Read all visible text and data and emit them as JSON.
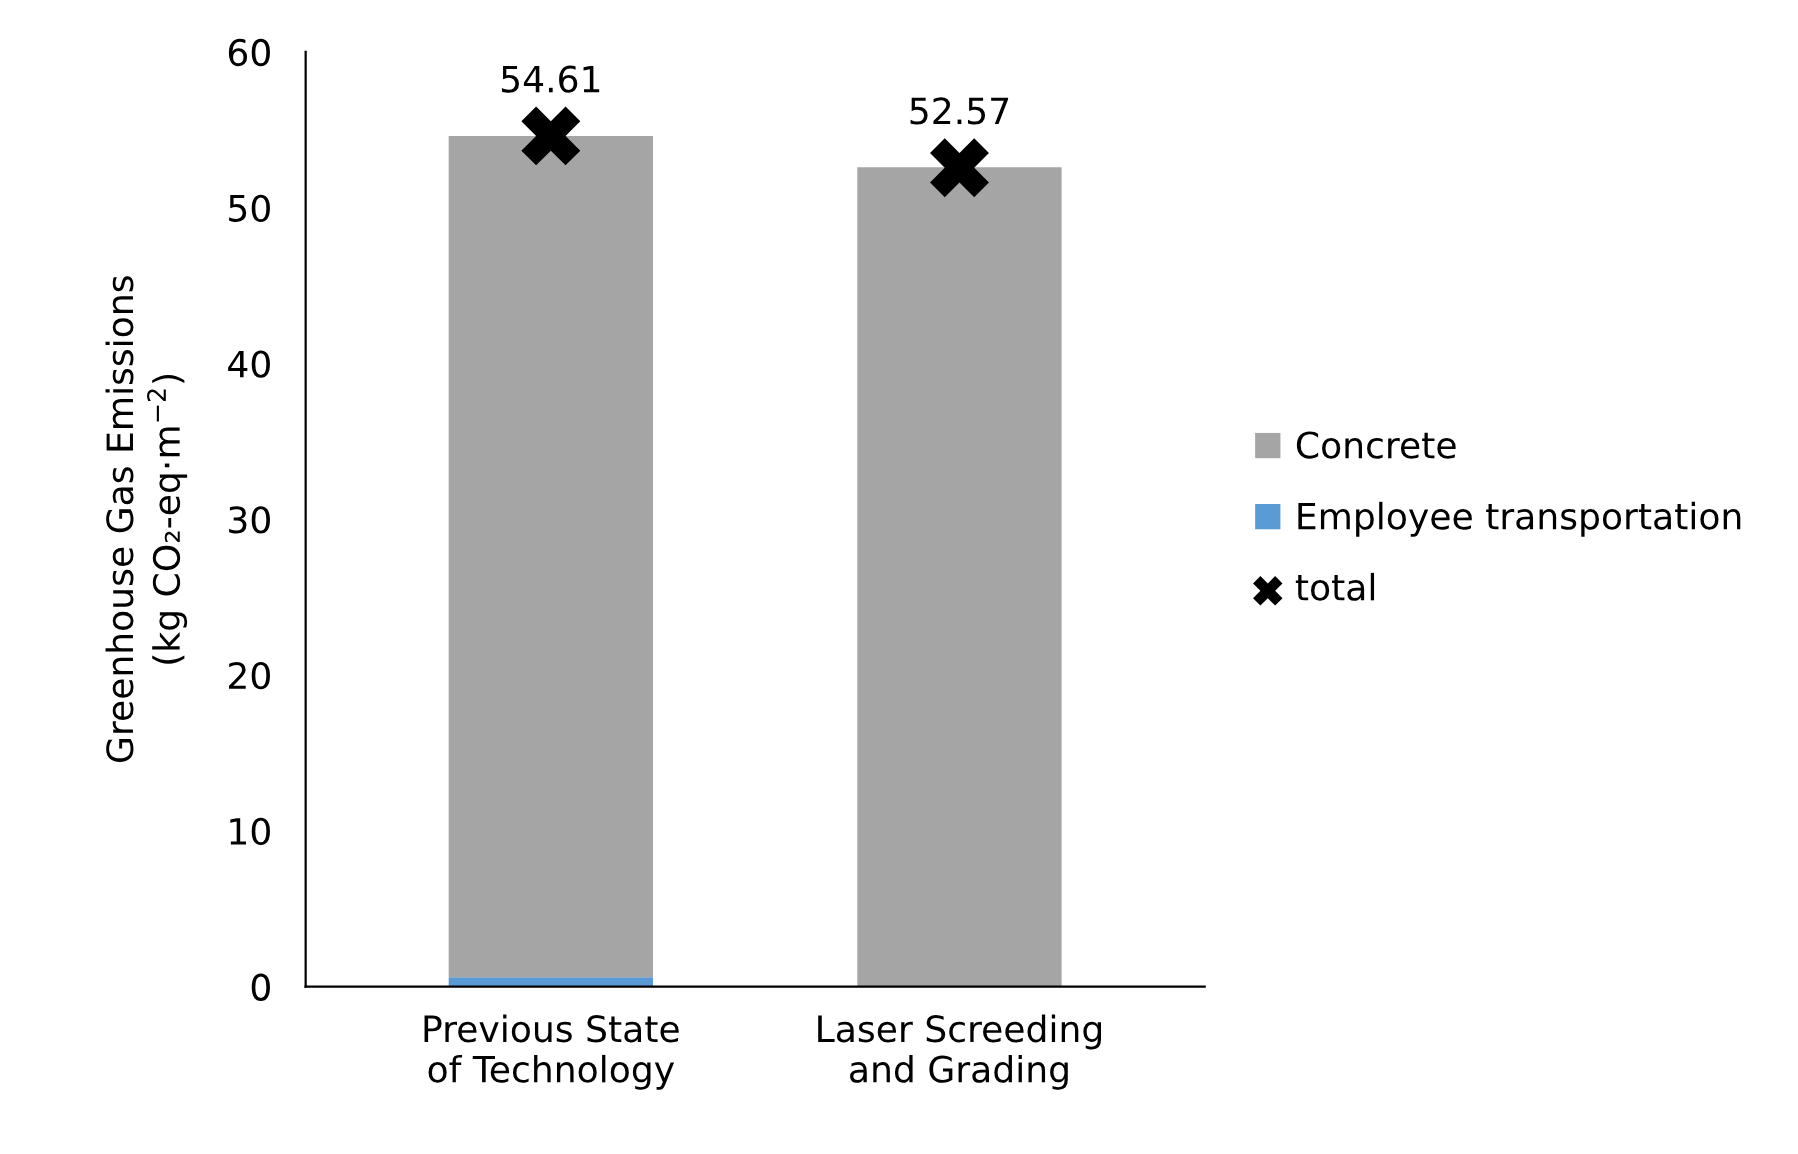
{
  "chart_data": {
    "type": "bar",
    "stacked": true,
    "ylabel": "Greenhouse Gas Emissions\n(kg CO₂-eq·m$^{−2}$)",
    "categories": [
      "Previous State\nof Technology",
      "Laser Screeding\nand Grading"
    ],
    "ylim": [
      0,
      60
    ],
    "yticks": [
      0,
      10,
      20,
      30,
      40,
      50,
      60
    ],
    "grid": false,
    "legend": "right",
    "series": [
      {
        "name": "Employee transportation",
        "color": "#5b9bd5",
        "values": [
          0.6,
          0
        ]
      },
      {
        "name": "Concrete",
        "color": "#a5a5a5",
        "values": [
          54.0,
          52.6
        ]
      },
      {
        "name": "total",
        "type": "scatter",
        "marker": "cross",
        "color": "#000000",
        "values": [
          54.61,
          52.57
        ],
        "value_labels": [
          "54.61",
          "52.57"
        ]
      }
    ]
  }
}
